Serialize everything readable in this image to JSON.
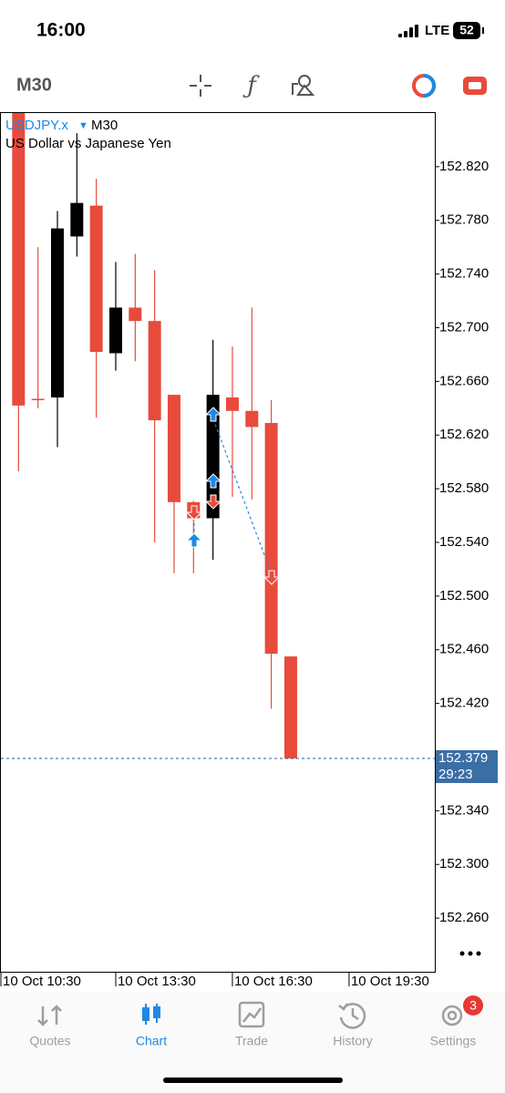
{
  "status_bar": {
    "time": "16:00",
    "network": "LTE",
    "battery": "52"
  },
  "toolbar": {
    "timeframe": "M30"
  },
  "chart_data": {
    "type": "candlestick",
    "symbol": "USDJPY.x",
    "timeframe": "M30",
    "description": "US Dollar vs Japanese Yen",
    "categories": [
      "10 Oct 10:30",
      null,
      null,
      null,
      null,
      null,
      "10 Oct 13:30",
      null,
      null,
      null,
      null,
      null,
      "10 Oct 16:30",
      null,
      null,
      null,
      null,
      null,
      "10 Oct 19:30"
    ],
    "series": {
      "open": [
        null,
        152.86,
        152.647,
        152.648,
        152.768,
        152.791,
        152.681,
        152.715,
        152.705,
        152.65,
        152.57,
        152.558,
        152.648,
        152.638,
        152.629,
        152.455,
        null,
        null,
        null
      ],
      "high": [
        null,
        152.86,
        152.76,
        152.787,
        152.845,
        152.811,
        152.749,
        152.755,
        152.743,
        152.65,
        152.571,
        152.691,
        152.686,
        152.715,
        152.646,
        152.455,
        null,
        null,
        null
      ],
      "low": [
        null,
        152.593,
        152.64,
        152.611,
        152.753,
        152.633,
        152.668,
        152.675,
        152.54,
        152.517,
        152.517,
        152.527,
        152.574,
        152.572,
        152.416,
        152.379,
        null,
        null,
        null
      ],
      "close": [
        null,
        152.642,
        152.646,
        152.774,
        152.793,
        152.682,
        152.715,
        152.705,
        152.631,
        152.57,
        152.558,
        152.65,
        152.638,
        152.626,
        152.457,
        152.379,
        null,
        null,
        null
      ]
    },
    "up_color": "#000000",
    "down_color": "#e84b3c",
    "ylim": [
      152.22,
      152.86
    ],
    "yticks": [
      {
        "value": 152.82,
        "label": "152.820"
      },
      {
        "value": 152.78,
        "label": "152.780"
      },
      {
        "value": 152.74,
        "label": "152.740"
      },
      {
        "value": 152.7,
        "label": "152.700"
      },
      {
        "value": 152.66,
        "label": "152.660"
      },
      {
        "value": 152.62,
        "label": "152.620"
      },
      {
        "value": 152.58,
        "label": "152.580"
      },
      {
        "value": 152.54,
        "label": "152.540"
      },
      {
        "value": 152.5,
        "label": "152.500"
      },
      {
        "value": 152.46,
        "label": "152.460"
      },
      {
        "value": 152.42,
        "label": "152.420"
      },
      {
        "value": 152.34,
        "label": "152.340"
      },
      {
        "value": 152.3,
        "label": "152.300"
      },
      {
        "value": 152.26,
        "label": "152.260"
      }
    ],
    "current_price": 152.379,
    "countdown": "29:23"
  },
  "tab_bar": {
    "tabs": [
      {
        "label": "Quotes",
        "active": false
      },
      {
        "label": "Chart",
        "active": true
      },
      {
        "label": "Trade",
        "active": false
      },
      {
        "label": "History",
        "active": false
      },
      {
        "label": "Settings",
        "active": false,
        "badge": "3"
      }
    ]
  }
}
